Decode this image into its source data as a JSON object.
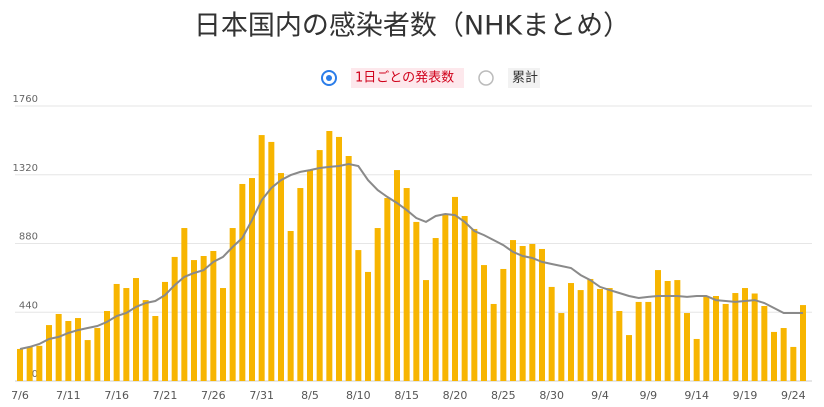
{
  "chart_data": {
    "type": "bar",
    "title": "日本国内の感染者数（NHKまとめ）",
    "alt_view": "累計",
    "categories": [
      "7/6",
      null,
      null,
      null,
      null,
      "7/11",
      null,
      null,
      null,
      null,
      "7/16",
      null,
      null,
      null,
      null,
      "7/21",
      null,
      null,
      null,
      null,
      "7/26",
      null,
      null,
      null,
      null,
      "7/31",
      null,
      null,
      null,
      null,
      "8/5",
      null,
      null,
      null,
      null,
      "8/10",
      null,
      null,
      null,
      null,
      "8/15",
      null,
      null,
      null,
      null,
      "8/20",
      null,
      null,
      null,
      null,
      "8/25",
      null,
      null,
      null,
      null,
      "8/30",
      null,
      null,
      null,
      null,
      "9/4",
      null,
      null,
      null,
      null,
      "9/9",
      null,
      null,
      null,
      null,
      "9/14",
      null,
      null,
      null,
      null,
      "9/19",
      null,
      null,
      null,
      null,
      "9/24",
      null
    ],
    "series": [
      {
        "name": "1日ごとの発表数",
        "type": "bar",
        "color": "#f7b500",
        "values": [
          205,
          220,
          225,
          358,
          429,
          384,
          403,
          262,
          339,
          448,
          621,
          595,
          659,
          518,
          416,
          634,
          794,
          979,
          774,
          800,
          832,
          595,
          979,
          1261,
          1299,
          1574,
          1530,
          1331,
          960,
          1235,
          1350,
          1478,
          1600,
          1562,
          1440,
          838,
          698,
          979,
          1171,
          1350,
          1235,
          1018,
          646,
          915,
          1069,
          1178,
          1056,
          973,
          742,
          493,
          717,
          902,
          864,
          877,
          845,
          602,
          435,
          627,
          582,
          653,
          589,
          595,
          448,
          294,
          506,
          506,
          710,
          640,
          646,
          435,
          269,
          538,
          544,
          493,
          563,
          595,
          560,
          480,
          314,
          339,
          218,
          486
        ]
      },
      {
        "type": "line",
        "color": "#8a8a8a",
        "values": [
          205,
          218,
          237,
          269,
          282,
          307,
          326,
          339,
          352,
          378,
          416,
          435,
          474,
          499,
          512,
          550,
          614,
          666,
          691,
          710,
          762,
          794,
          858,
          915,
          1030,
          1158,
          1235,
          1286,
          1318,
          1338,
          1350,
          1363,
          1370,
          1376,
          1389,
          1376,
          1286,
          1222,
          1178,
          1139,
          1094,
          1043,
          1018,
          1056,
          1069,
          1062,
          1018,
          960,
          934,
          902,
          870,
          826,
          800,
          787,
          762,
          749,
          736,
          723,
          678,
          646,
          602,
          582,
          563,
          544,
          531,
          538,
          544,
          544,
          544,
          538,
          544,
          544,
          518,
          512,
          506,
          512,
          518,
          499,
          467,
          435,
          435,
          435
        ]
      }
    ],
    "ylim": [
      0,
      1760
    ],
    "yticks": [
      0,
      440,
      880,
      1320,
      1760
    ],
    "grid": true
  }
}
